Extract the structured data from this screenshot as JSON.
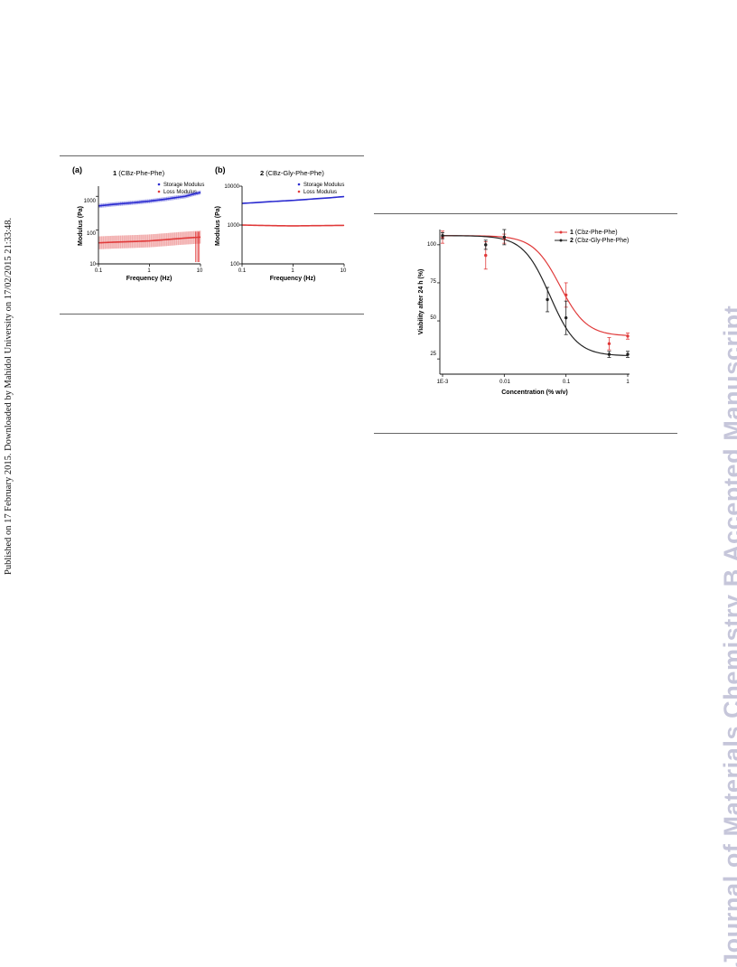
{
  "side_note": "Published on 17 February 2015. Downloaded by Mahidol University on 17/02/2015 21:33:48.",
  "watermark": "Journal of Materials Chemistry B Accepted Manuscript",
  "figure_left": {
    "panel_a": {
      "panel_label": "(a)",
      "title_num": "1",
      "title_text": " (CBz-Phe-Phe)",
      "legend": [
        "Storage Modulus",
        "Loss Modulus"
      ],
      "xlabel": "Frequency (Hz)",
      "ylabel": "Modulus (Pa)",
      "x_ticks": [
        "0.1",
        "1",
        "10"
      ],
      "y_ticks": [
        "1000",
        "100",
        "10"
      ]
    },
    "panel_b": {
      "panel_label": "(b)",
      "title_num": "2",
      "title_text": " (CBz-Gly-Phe-Phe)",
      "legend": [
        "Storage Modulus",
        "Loss Modulus"
      ],
      "xlabel": "Frequency (Hz)",
      "ylabel": "Modulus (Pa)",
      "x_ticks": [
        "0.1",
        "1",
        "10"
      ],
      "y_ticks": [
        "10000",
        "1000",
        "100"
      ]
    }
  },
  "figure_right": {
    "legend": [
      {
        "num": "1",
        "text": " (Cbz-Phe-Phe)"
      },
      {
        "num": "2",
        "text": " (Cbz-Gly-Phe-Phe)"
      }
    ],
    "xlabel": "Concentration (% w/v)",
    "ylabel": "Viability after 24 h (%)",
    "x_ticks": [
      "1E-3",
      "0.01",
      "0.1",
      "1"
    ],
    "y_ticks": [
      "100",
      "75",
      "50",
      "25"
    ]
  },
  "colors": {
    "red": "#e03a3a",
    "blue": "#2a2ad0",
    "black": "#222222",
    "watermark": "#c6c6da"
  },
  "chart_data": [
    {
      "type": "line",
      "xscale": "log",
      "yscale": "log",
      "xlim": [
        0.1,
        10
      ],
      "ylim": [
        10,
        2000
      ],
      "series": [
        {
          "name": "Storage Modulus",
          "color": "#2a2ad0",
          "x": [
            0.1,
            0.2,
            0.5,
            1,
            2,
            5,
            10
          ],
          "y": [
            520,
            580,
            650,
            720,
            820,
            1000,
            1300
          ]
        },
        {
          "name": "Loss Modulus",
          "color": "#e03a3a",
          "x": [
            0.1,
            0.2,
            0.5,
            1,
            2,
            5,
            10
          ],
          "y": [
            42,
            44,
            46,
            48,
            52,
            58,
            62
          ]
        }
      ]
    },
    {
      "type": "line",
      "xscale": "log",
      "yscale": "log",
      "xlim": [
        0.1,
        10
      ],
      "ylim": [
        100,
        10000
      ],
      "series": [
        {
          "name": "Storage Modulus",
          "color": "#2a2ad0",
          "x": [
            0.1,
            0.2,
            0.5,
            1,
            2,
            5,
            10
          ],
          "y": [
            3600,
            3800,
            4100,
            4300,
            4600,
            5000,
            5400
          ]
        },
        {
          "name": "Loss Modulus",
          "color": "#e03a3a",
          "x": [
            0.1,
            0.2,
            0.5,
            1,
            2,
            5,
            10
          ],
          "y": [
            1000,
            980,
            960,
            950,
            960,
            970,
            980
          ]
        }
      ]
    },
    {
      "type": "scatter",
      "xscale": "log",
      "xlim": [
        0.001,
        1
      ],
      "ylim": [
        15,
        110
      ],
      "series": [
        {
          "name": "1 (Cbz-Phe-Phe)",
          "color": "#e03a3a",
          "x": [
            0.001,
            0.005,
            0.01,
            0.1,
            0.5,
            1
          ],
          "y": [
            105,
            93,
            104,
            67,
            35,
            40
          ],
          "err": [
            4,
            9,
            3,
            8,
            4,
            2
          ]
        },
        {
          "name": "2 (Cbz-Gly-Phe-Phe)",
          "color": "#222222",
          "x": [
            0.001,
            0.005,
            0.01,
            0.05,
            0.1,
            0.5,
            1
          ],
          "y": [
            106,
            100,
            105,
            64,
            52,
            28,
            28
          ],
          "err": [
            2,
            3,
            5,
            8,
            11,
            2,
            2
          ]
        }
      ],
      "fits": [
        {
          "name": "1 (Cbz-Phe-Phe)",
          "color": "#e03a3a",
          "top": 106,
          "bottom": 40,
          "ec50": 0.08,
          "hill": 2.0
        },
        {
          "name": "2 (Cbz-Gly-Phe-Phe)",
          "color": "#222222",
          "top": 106,
          "bottom": 27,
          "ec50": 0.055,
          "hill": 2.0
        }
      ]
    }
  ]
}
